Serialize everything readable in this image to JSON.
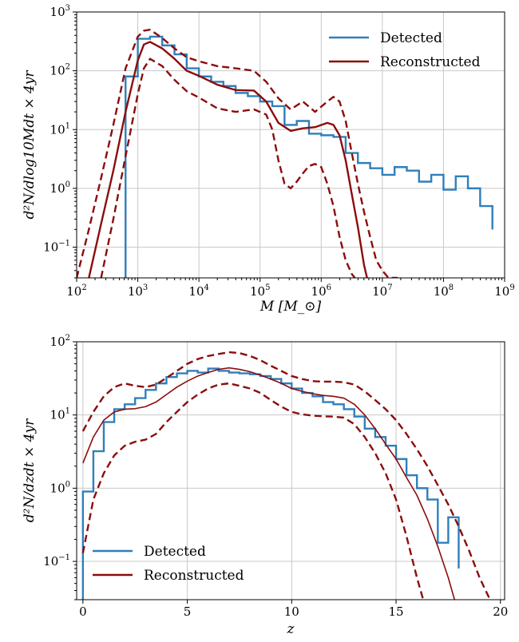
{
  "colors": {
    "detected": "#2f7fbb",
    "reconstructed": "#8b0d0d",
    "grid": "#c8c8c8"
  },
  "chart_data": [
    {
      "type": "line",
      "xscale": "log",
      "yscale": "log",
      "xlim": [
        100,
        1000000000
      ],
      "ylim": [
        0.03,
        1000
      ],
      "xlabel": "M [M_⊙]",
      "ylabel": "d²N/dlog10Mdt × 4yr",
      "xticks": [
        {
          "v": 100,
          "m": "10",
          "e": "2"
        },
        {
          "v": 1000,
          "m": "10",
          "e": "3"
        },
        {
          "v": 10000,
          "m": "10",
          "e": "4"
        },
        {
          "v": 100000,
          "m": "10",
          "e": "5"
        },
        {
          "v": 1000000,
          "m": "10",
          "e": "6"
        },
        {
          "v": 10000000,
          "m": "10",
          "e": "7"
        },
        {
          "v": 100000000,
          "m": "10",
          "e": "8"
        },
        {
          "v": 1000000000,
          "m": "10",
          "e": "9"
        }
      ],
      "yticks": [
        {
          "v": 0.1,
          "m": "10",
          "e": "−1"
        },
        {
          "v": 1,
          "m": "10",
          "e": "0"
        },
        {
          "v": 10,
          "m": "10",
          "e": "1"
        },
        {
          "v": 100,
          "m": "10",
          "e": "2"
        },
        {
          "v": 1000,
          "m": "10",
          "e": "3"
        }
      ],
      "grid": true,
      "legend_position": "top-right",
      "histogram": {
        "name": "Detected",
        "edges_log10": [
          2.8,
          3.0,
          3.2,
          3.4,
          3.6,
          3.8,
          4.0,
          4.2,
          4.4,
          4.6,
          4.8,
          5.0,
          5.2,
          5.4,
          5.6,
          5.8,
          6.0,
          6.2,
          6.4,
          6.6,
          6.8,
          7.0,
          7.2,
          7.4,
          7.6,
          7.8,
          8.0,
          8.2,
          8.4,
          8.6,
          8.8
        ],
        "values": [
          80,
          350,
          380,
          270,
          190,
          110,
          80,
          65,
          55,
          42,
          37,
          30,
          25,
          12,
          14,
          8.5,
          8,
          7.5,
          4,
          2.7,
          2.2,
          1.7,
          2.3,
          2.0,
          1.3,
          1.7,
          0.95,
          1.6,
          1.0,
          0.5,
          0.2
        ]
      },
      "series": [
        {
          "name": "Reconstructed",
          "style": "solid",
          "x_log10": [
            2.2,
            2.4,
            2.6,
            2.8,
            3.0,
            3.1,
            3.2,
            3.4,
            3.6,
            3.8,
            4.0,
            4.3,
            4.6,
            4.9,
            5.1,
            5.3,
            5.5,
            5.7,
            5.9,
            6.1,
            6.2,
            6.3,
            6.4,
            6.5,
            6.6,
            6.7,
            6.75
          ],
          "values": [
            0.03,
            0.25,
            2.0,
            20,
            150,
            280,
            310,
            240,
            160,
            100,
            82,
            58,
            47,
            46,
            30,
            13,
            9.5,
            10.5,
            11,
            13,
            12,
            8,
            3,
            0.8,
            0.22,
            0.05,
            0.03
          ]
        },
        {
          "name": "",
          "style": "dashed",
          "x_log10": [
            2.0,
            2.2,
            2.4,
            2.6,
            2.8,
            3.0,
            3.1,
            3.2,
            3.4,
            3.6,
            3.8,
            4.0,
            4.3,
            4.6,
            4.9,
            5.1,
            5.3,
            5.5,
            5.7,
            5.9,
            6.1,
            6.2,
            6.3,
            6.4,
            6.5,
            6.6,
            6.7,
            6.8,
            6.9,
            7.0,
            7.1,
            7.2,
            7.25
          ],
          "values": [
            0.03,
            0.2,
            1.5,
            12,
            110,
            380,
            480,
            500,
            360,
            240,
            170,
            145,
            120,
            110,
            100,
            65,
            34,
            22,
            30,
            20,
            30,
            36,
            30,
            14,
            4,
            1.2,
            0.4,
            0.15,
            0.06,
            0.04,
            0.03,
            0.03,
            0.03
          ]
        },
        {
          "name": "",
          "style": "dashed",
          "x_log10": [
            2.4,
            2.6,
            2.8,
            3.0,
            3.1,
            3.2,
            3.4,
            3.6,
            3.8,
            4.0,
            4.3,
            4.6,
            4.9,
            5.1,
            5.2,
            5.3,
            5.4,
            5.5,
            5.6,
            5.7,
            5.8,
            5.9,
            6.0,
            6.1,
            6.2,
            6.3,
            6.4,
            6.5,
            6.55
          ],
          "values": [
            0.03,
            0.3,
            3.5,
            40,
            110,
            160,
            120,
            70,
            45,
            35,
            23,
            20,
            22,
            18,
            10,
            3,
            1.2,
            1.0,
            1.3,
            1.8,
            2.4,
            2.6,
            2.3,
            1.2,
            0.5,
            0.15,
            0.06,
            0.035,
            0.03
          ]
        }
      ],
      "legend": [
        "Detected",
        "Reconstructed"
      ]
    },
    {
      "type": "line",
      "xscale": "linear",
      "yscale": "log",
      "xlim": [
        -0.3,
        20.2
      ],
      "ylim": [
        0.03,
        100
      ],
      "xlabel": "z",
      "ylabel": "d²N/dzdt × 4yr",
      "xticks": [
        {
          "v": 0,
          "t": "0"
        },
        {
          "v": 5,
          "t": "5"
        },
        {
          "v": 10,
          "t": "10"
        },
        {
          "v": 15,
          "t": "15"
        },
        {
          "v": 20,
          "t": "20"
        }
      ],
      "yticks": [
        {
          "v": 0.1,
          "m": "10",
          "e": "−1"
        },
        {
          "v": 1,
          "m": "10",
          "e": "0"
        },
        {
          "v": 10,
          "m": "10",
          "e": "1"
        },
        {
          "v": 100,
          "m": "10",
          "e": "2"
        }
      ],
      "grid": true,
      "legend_position": "bottom-left",
      "histogram": {
        "name": "Detected",
        "edges": [
          0,
          0.5,
          1,
          1.5,
          2,
          2.5,
          3,
          3.5,
          4,
          4.5,
          5,
          5.5,
          6,
          6.5,
          7,
          7.5,
          8,
          8.5,
          9,
          9.5,
          10,
          10.5,
          11,
          11.5,
          12,
          12.5,
          13,
          13.5,
          14,
          14.5,
          15,
          15.5,
          16,
          16.5,
          17,
          17.5,
          18
        ],
        "values": [
          0.9,
          3.2,
          8,
          12,
          14,
          17,
          22,
          27,
          33,
          37,
          40,
          38,
          43,
          40,
          38,
          37,
          36,
          34,
          31,
          27,
          23,
          20,
          18,
          15,
          14,
          12,
          9.5,
          6.5,
          5,
          3.8,
          2.5,
          1.5,
          1.0,
          0.7,
          0.18,
          0.4,
          0.08
        ]
      },
      "series": [
        {
          "name": "Reconstructed",
          "style": "solid",
          "x": [
            0,
            0.5,
            1,
            1.5,
            2,
            2.5,
            3,
            3.5,
            4,
            4.5,
            5,
            5.5,
            6,
            6.5,
            7,
            7.5,
            8,
            8.5,
            9,
            9.5,
            10,
            10.5,
            11,
            11.5,
            12,
            12.5,
            13,
            13.5,
            14,
            14.5,
            15,
            15.5,
            16,
            16.5,
            17,
            17.5,
            17.8
          ],
          "values": [
            2.2,
            5,
            8.5,
            11,
            12,
            12.2,
            13,
            15,
            19,
            24,
            29,
            34,
            38,
            42,
            44,
            42,
            39,
            35,
            31,
            27,
            23,
            21,
            19.5,
            18.5,
            18,
            17,
            14,
            10,
            6.5,
            4,
            2.5,
            1.4,
            0.8,
            0.38,
            0.16,
            0.06,
            0.03
          ]
        },
        {
          "name": "",
          "style": "dashed",
          "x": [
            0,
            0.5,
            1,
            1.5,
            2,
            2.5,
            3,
            3.5,
            4,
            4.5,
            5,
            5.5,
            6,
            6.5,
            7,
            7.5,
            8,
            8.5,
            9,
            9.5,
            10,
            10.5,
            11,
            11.5,
            12,
            12.5,
            13,
            13.5,
            14,
            14.5,
            15,
            15.5,
            16,
            16.5,
            17,
            17.5,
            18,
            18.5,
            19,
            19.5
          ],
          "values": [
            6,
            11,
            18,
            24,
            27,
            25,
            24,
            26,
            32,
            40,
            50,
            58,
            64,
            68,
            72,
            70,
            64,
            56,
            47,
            40,
            34,
            31,
            29,
            28.5,
            28.5,
            28,
            26,
            21,
            16,
            12,
            8.5,
            5.5,
            3.4,
            2,
            1.1,
            0.6,
            0.3,
            0.14,
            0.06,
            0.03
          ]
        },
        {
          "name": "",
          "style": "dashed",
          "x": [
            0,
            0.5,
            1,
            1.5,
            2,
            2.5,
            3,
            3.5,
            4,
            4.5,
            5,
            5.5,
            6,
            6.5,
            7,
            7.5,
            8,
            8.5,
            9,
            9.5,
            10,
            10.5,
            11,
            11.5,
            12,
            12.5,
            13,
            13.5,
            14,
            14.5,
            15,
            15.5,
            16,
            16.3
          ],
          "values": [
            0.13,
            0.7,
            1.6,
            2.8,
            3.8,
            4.3,
            4.6,
            5.5,
            8,
            11,
            15,
            19,
            23,
            26,
            27,
            25,
            23,
            20,
            16,
            13,
            11,
            10.2,
            9.8,
            9.6,
            9.5,
            9.2,
            7.5,
            5,
            3,
            1.6,
            0.7,
            0.22,
            0.06,
            0.03
          ]
        }
      ],
      "legend": [
        "Detected",
        "Reconstructed"
      ]
    }
  ]
}
